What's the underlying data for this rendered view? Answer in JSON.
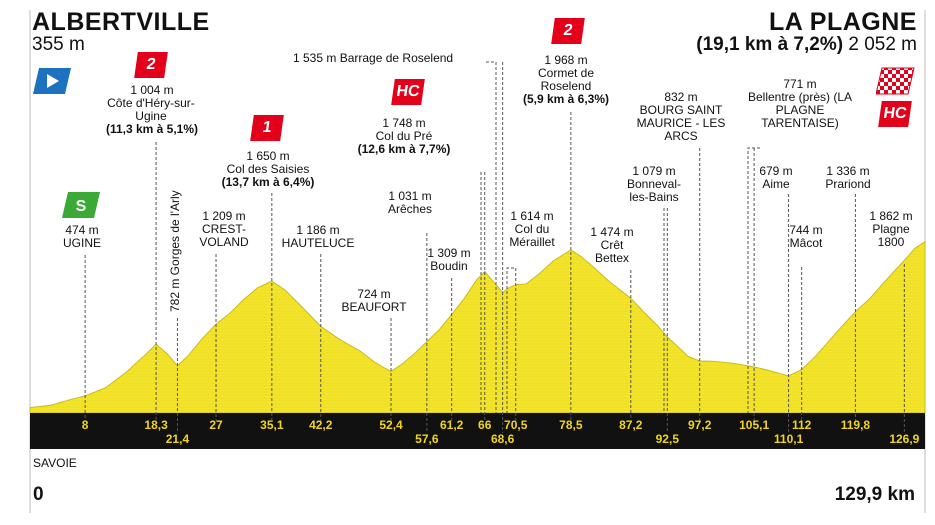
{
  "start": {
    "name": "ALBERTVILLE",
    "altitude": "355 m"
  },
  "finish": {
    "name": "LA PLAGNE",
    "climb": "(19,1 km à 7,2%)",
    "altitude": "2 052 m"
  },
  "region": "SAVOIE",
  "km_start": "0",
  "km_end": "129,9 km",
  "colors": {
    "profile_fill": "#f3e52b",
    "profile_stroke": "#c9b81a",
    "km_bar": "#111111",
    "km_text": "#f2d51a",
    "badge_red": "#e2001a",
    "sprint_green": "#3aa935",
    "start_blue": "#1d72c0"
  },
  "points": [
    {
      "id": "ugine",
      "km": 8,
      "alt": 474,
      "label_alt": "474 m",
      "name": "UGINE",
      "km_label": "8"
    },
    {
      "id": "hery",
      "km": 18.3,
      "alt": 1004,
      "label_alt": "1 004 m",
      "name": "Côte d'Héry-sur-Ugine",
      "climb": "(11,3 km à 5,1%)",
      "category": "2",
      "km_label": "18,3"
    },
    {
      "id": "arly",
      "km": 21.4,
      "alt": 782,
      "name": "782 m Gorges de l'Arly",
      "km_label": "21,4"
    },
    {
      "id": "crest",
      "km": 27,
      "alt": 1209,
      "label_alt": "1 209 m",
      "name": "CREST-VOLAND",
      "km_label": "27"
    },
    {
      "id": "saisies",
      "km": 35.1,
      "alt": 1650,
      "label_alt": "1 650 m",
      "name": "Col des Saisies",
      "climb": "(13,7 km à 6,4%)",
      "category": "1",
      "km_label": "35,1"
    },
    {
      "id": "hauteluce",
      "km": 42.2,
      "alt": 1186,
      "label_alt": "1 186 m",
      "name": "HAUTELUCE",
      "km_label": "42,2"
    },
    {
      "id": "beaufort",
      "km": 52.4,
      "alt": 724,
      "label_alt": "724 m",
      "name": "BEAUFORT",
      "km_label": "52,4"
    },
    {
      "id": "areches",
      "km": 57.6,
      "alt": 1031,
      "label_alt": "1 031 m",
      "name": "Arêches",
      "km_label": "57,6"
    },
    {
      "id": "boudin",
      "km": 61.2,
      "alt": 1309,
      "label_alt": "1 309 m",
      "name": "Boudin",
      "km_label": "61,2"
    },
    {
      "id": "pre",
      "km": 66,
      "alt": 1748,
      "label_alt": "1 748 m",
      "name": "Col du Pré",
      "climb": "(12,6 km à 7,7%)",
      "category": "HC",
      "km_label": "66"
    },
    {
      "id": "roselend_barrage",
      "km": 68.6,
      "alt": 1535,
      "name": "1 535 m Barrage de Roselend",
      "km_label": "68,6"
    },
    {
      "id": "meraillet",
      "km": 70.5,
      "alt": 1614,
      "label_alt": "1 614 m",
      "name": "Col du Méraillet",
      "km_label": "70,5"
    },
    {
      "id": "cormet",
      "km": 78.5,
      "alt": 1968,
      "label_alt": "1 968 m",
      "name": "Cormet de Roselend",
      "climb": "(5,9 km à 6,3%)",
      "category": "2",
      "km_label": "78,5"
    },
    {
      "id": "bettex",
      "km": 87.2,
      "alt": 1474,
      "label_alt": "1 474 m",
      "name": "Crêt Bettex",
      "km_label": "87,2"
    },
    {
      "id": "bonneval",
      "km": 92.5,
      "alt": 1079,
      "label_alt": "1 079 m",
      "name": "Bonneval-les-Bains",
      "km_label": "92,5"
    },
    {
      "id": "bourg",
      "km": 97.2,
      "alt": 832,
      "label_alt": "832 m",
      "name": "BOURG SAINT MAURICE - LES ARCS",
      "km_label": "97,2"
    },
    {
      "id": "bellentre",
      "km": 105.1,
      "alt": 771,
      "label_alt": "771 m",
      "name": "Bellentre (près) (LA PLAGNE TARENTAISE)",
      "km_label": "105,1"
    },
    {
      "id": "aime",
      "km": 110.1,
      "alt": 679,
      "label_alt": "679 m",
      "name": "Aime",
      "km_label": "110,1"
    },
    {
      "id": "macot",
      "km": 112,
      "alt": 744,
      "label_alt": "744 m",
      "name": "Mâcot",
      "km_label": "112"
    },
    {
      "id": "prariond",
      "km": 119.8,
      "alt": 1336,
      "label_alt": "1 336 m",
      "name": "Prariond",
      "km_label": "119,8"
    },
    {
      "id": "plagne1800",
      "km": 126.9,
      "alt": 1862,
      "label_alt": "1 862 m",
      "name": "Plagne 1800",
      "km_label": "126,9"
    }
  ],
  "profile": [
    [
      0,
      355
    ],
    [
      3,
      380
    ],
    [
      6,
      440
    ],
    [
      8,
      474
    ],
    [
      11,
      560
    ],
    [
      14,
      720
    ],
    [
      16.5,
      880
    ],
    [
      18.3,
      1004
    ],
    [
      20,
      900
    ],
    [
      21.4,
      782
    ],
    [
      23,
      890
    ],
    [
      25,
      1060
    ],
    [
      27,
      1209
    ],
    [
      29,
      1320
    ],
    [
      31,
      1460
    ],
    [
      33,
      1580
    ],
    [
      35.1,
      1650
    ],
    [
      37,
      1560
    ],
    [
      39,
      1420
    ],
    [
      42.2,
      1186
    ],
    [
      45,
      1050
    ],
    [
      48,
      930
    ],
    [
      50,
      820
    ],
    [
      52.4,
      724
    ],
    [
      54,
      800
    ],
    [
      56,
      920
    ],
    [
      57.6,
      1031
    ],
    [
      59.5,
      1160
    ],
    [
      61.2,
      1309
    ],
    [
      63,
      1470
    ],
    [
      64.8,
      1660
    ],
    [
      66,
      1748
    ],
    [
      67.3,
      1640
    ],
    [
      68.6,
      1535
    ],
    [
      69.5,
      1580
    ],
    [
      70.5,
      1614
    ],
    [
      72,
      1620
    ],
    [
      74,
      1730
    ],
    [
      76,
      1860
    ],
    [
      78.5,
      1968
    ],
    [
      80,
      1900
    ],
    [
      82,
      1780
    ],
    [
      84,
      1650
    ],
    [
      87.2,
      1474
    ],
    [
      89,
      1340
    ],
    [
      91,
      1200
    ],
    [
      92.5,
      1079
    ],
    [
      94,
      980
    ],
    [
      95.5,
      880
    ],
    [
      97.2,
      832
    ],
    [
      99,
      830
    ],
    [
      102,
      810
    ],
    [
      105.1,
      771
    ],
    [
      107,
      740
    ],
    [
      110.1,
      679
    ],
    [
      112,
      744
    ],
    [
      114,
      880
    ],
    [
      116,
      1040
    ],
    [
      118,
      1200
    ],
    [
      119.8,
      1336
    ],
    [
      122,
      1480
    ],
    [
      124,
      1640
    ],
    [
      126.9,
      1862
    ],
    [
      128.5,
      1990
    ],
    [
      129.9,
      2052
    ]
  ]
}
